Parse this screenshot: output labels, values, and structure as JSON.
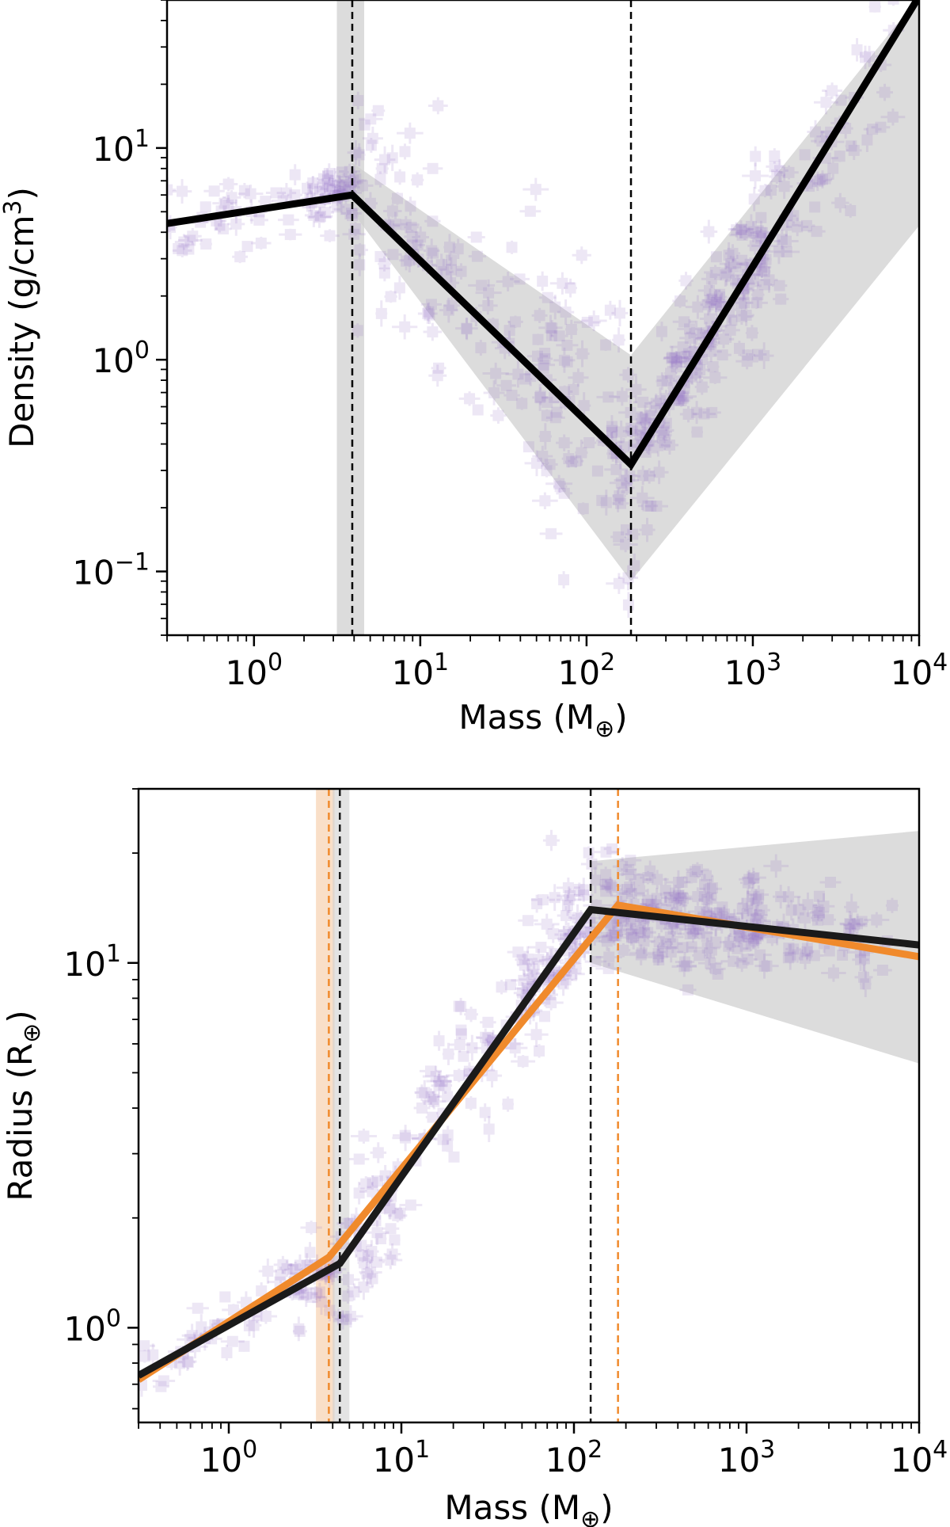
{
  "figure": {
    "background": "#ffffff"
  },
  "chart_data": [
    {
      "type": "scatter",
      "title": "",
      "xlabel": "Mass (M",
      "xlabel_sub": "⊕",
      "xlabel_close": ")",
      "ylabel": "Density (g/cm",
      "ylabel_sup": "3",
      "ylabel_close": ")",
      "xscale": "log",
      "yscale": "log",
      "xlim": [
        0.3,
        10000
      ],
      "ylim": [
        0.05,
        50
      ],
      "xticks": [
        {
          "base": "10",
          "exp": "0"
        },
        {
          "base": "10",
          "exp": "1"
        },
        {
          "base": "10",
          "exp": "2"
        },
        {
          "base": "10",
          "exp": "3"
        },
        {
          "base": "10",
          "exp": "4"
        }
      ],
      "yticks": [
        {
          "base": "10",
          "exp": "−1"
        },
        {
          "base": "10",
          "exp": "0"
        },
        {
          "base": "10",
          "exp": "1"
        }
      ],
      "grid": false,
      "scatter_color": "#9370c8",
      "scatter_description": "purple translucent data points with error bars",
      "fit_line": {
        "color": "#000000",
        "x": [
          0.3,
          3.9,
          185,
          10000
        ],
        "y": [
          4.4,
          6.0,
          0.32,
          52
        ]
      },
      "uncertainty_band": {
        "color": "#d0d0d0",
        "x": [
          3.9,
          185,
          10000
        ],
        "y_upper": [
          8.5,
          1.05,
          52
        ],
        "y_lower": [
          5.0,
          0.09,
          4.3
        ]
      },
      "breakpoints": [
        {
          "x": 3.9,
          "color": "#000000",
          "band": [
            3.15,
            4.6
          ]
        },
        {
          "x": 185,
          "color": "#000000"
        }
      ]
    },
    {
      "type": "scatter",
      "title": "",
      "xlabel": "Mass (M",
      "xlabel_sub": "⊕",
      "xlabel_close": ")",
      "ylabel": "Radius (R",
      "ylabel_sub": "⊕",
      "ylabel_close": ")",
      "xscale": "log",
      "yscale": "log",
      "xlim": [
        0.3,
        10000
      ],
      "ylim": [
        0.55,
        30
      ],
      "xticks": [
        {
          "base": "10",
          "exp": "0"
        },
        {
          "base": "10",
          "exp": "1"
        },
        {
          "base": "10",
          "exp": "2"
        },
        {
          "base": "10",
          "exp": "3"
        },
        {
          "base": "10",
          "exp": "4"
        }
      ],
      "yticks": [
        {
          "base": "10",
          "exp": "0"
        },
        {
          "base": "10",
          "exp": "1"
        }
      ],
      "grid": false,
      "scatter_color": "#9370c8",
      "scatter_description": "purple translucent data points with error bars",
      "series": [
        {
          "color": "#f08a2c",
          "x": [
            0.3,
            3.8,
            180,
            10000
          ],
          "y": [
            0.72,
            1.56,
            14.4,
            10.4
          ],
          "breakpoints": [
            3.8,
            180
          ],
          "break_band": [
            3.2,
            4.1
          ]
        },
        {
          "color": "#1a1a1a",
          "x": [
            0.3,
            4.4,
            125,
            10000
          ],
          "y": [
            0.74,
            1.5,
            14.0,
            11.2
          ],
          "breakpoints": [
            4.4,
            125
          ],
          "break_band": [
            4.0,
            5.0
          ]
        }
      ],
      "uncertainty_band": {
        "color": "#d0d0d0",
        "x": [
          125,
          10000
        ],
        "y_upper": [
          19.0,
          23.0
        ],
        "y_lower": [
          10.0,
          5.3
        ]
      }
    }
  ]
}
